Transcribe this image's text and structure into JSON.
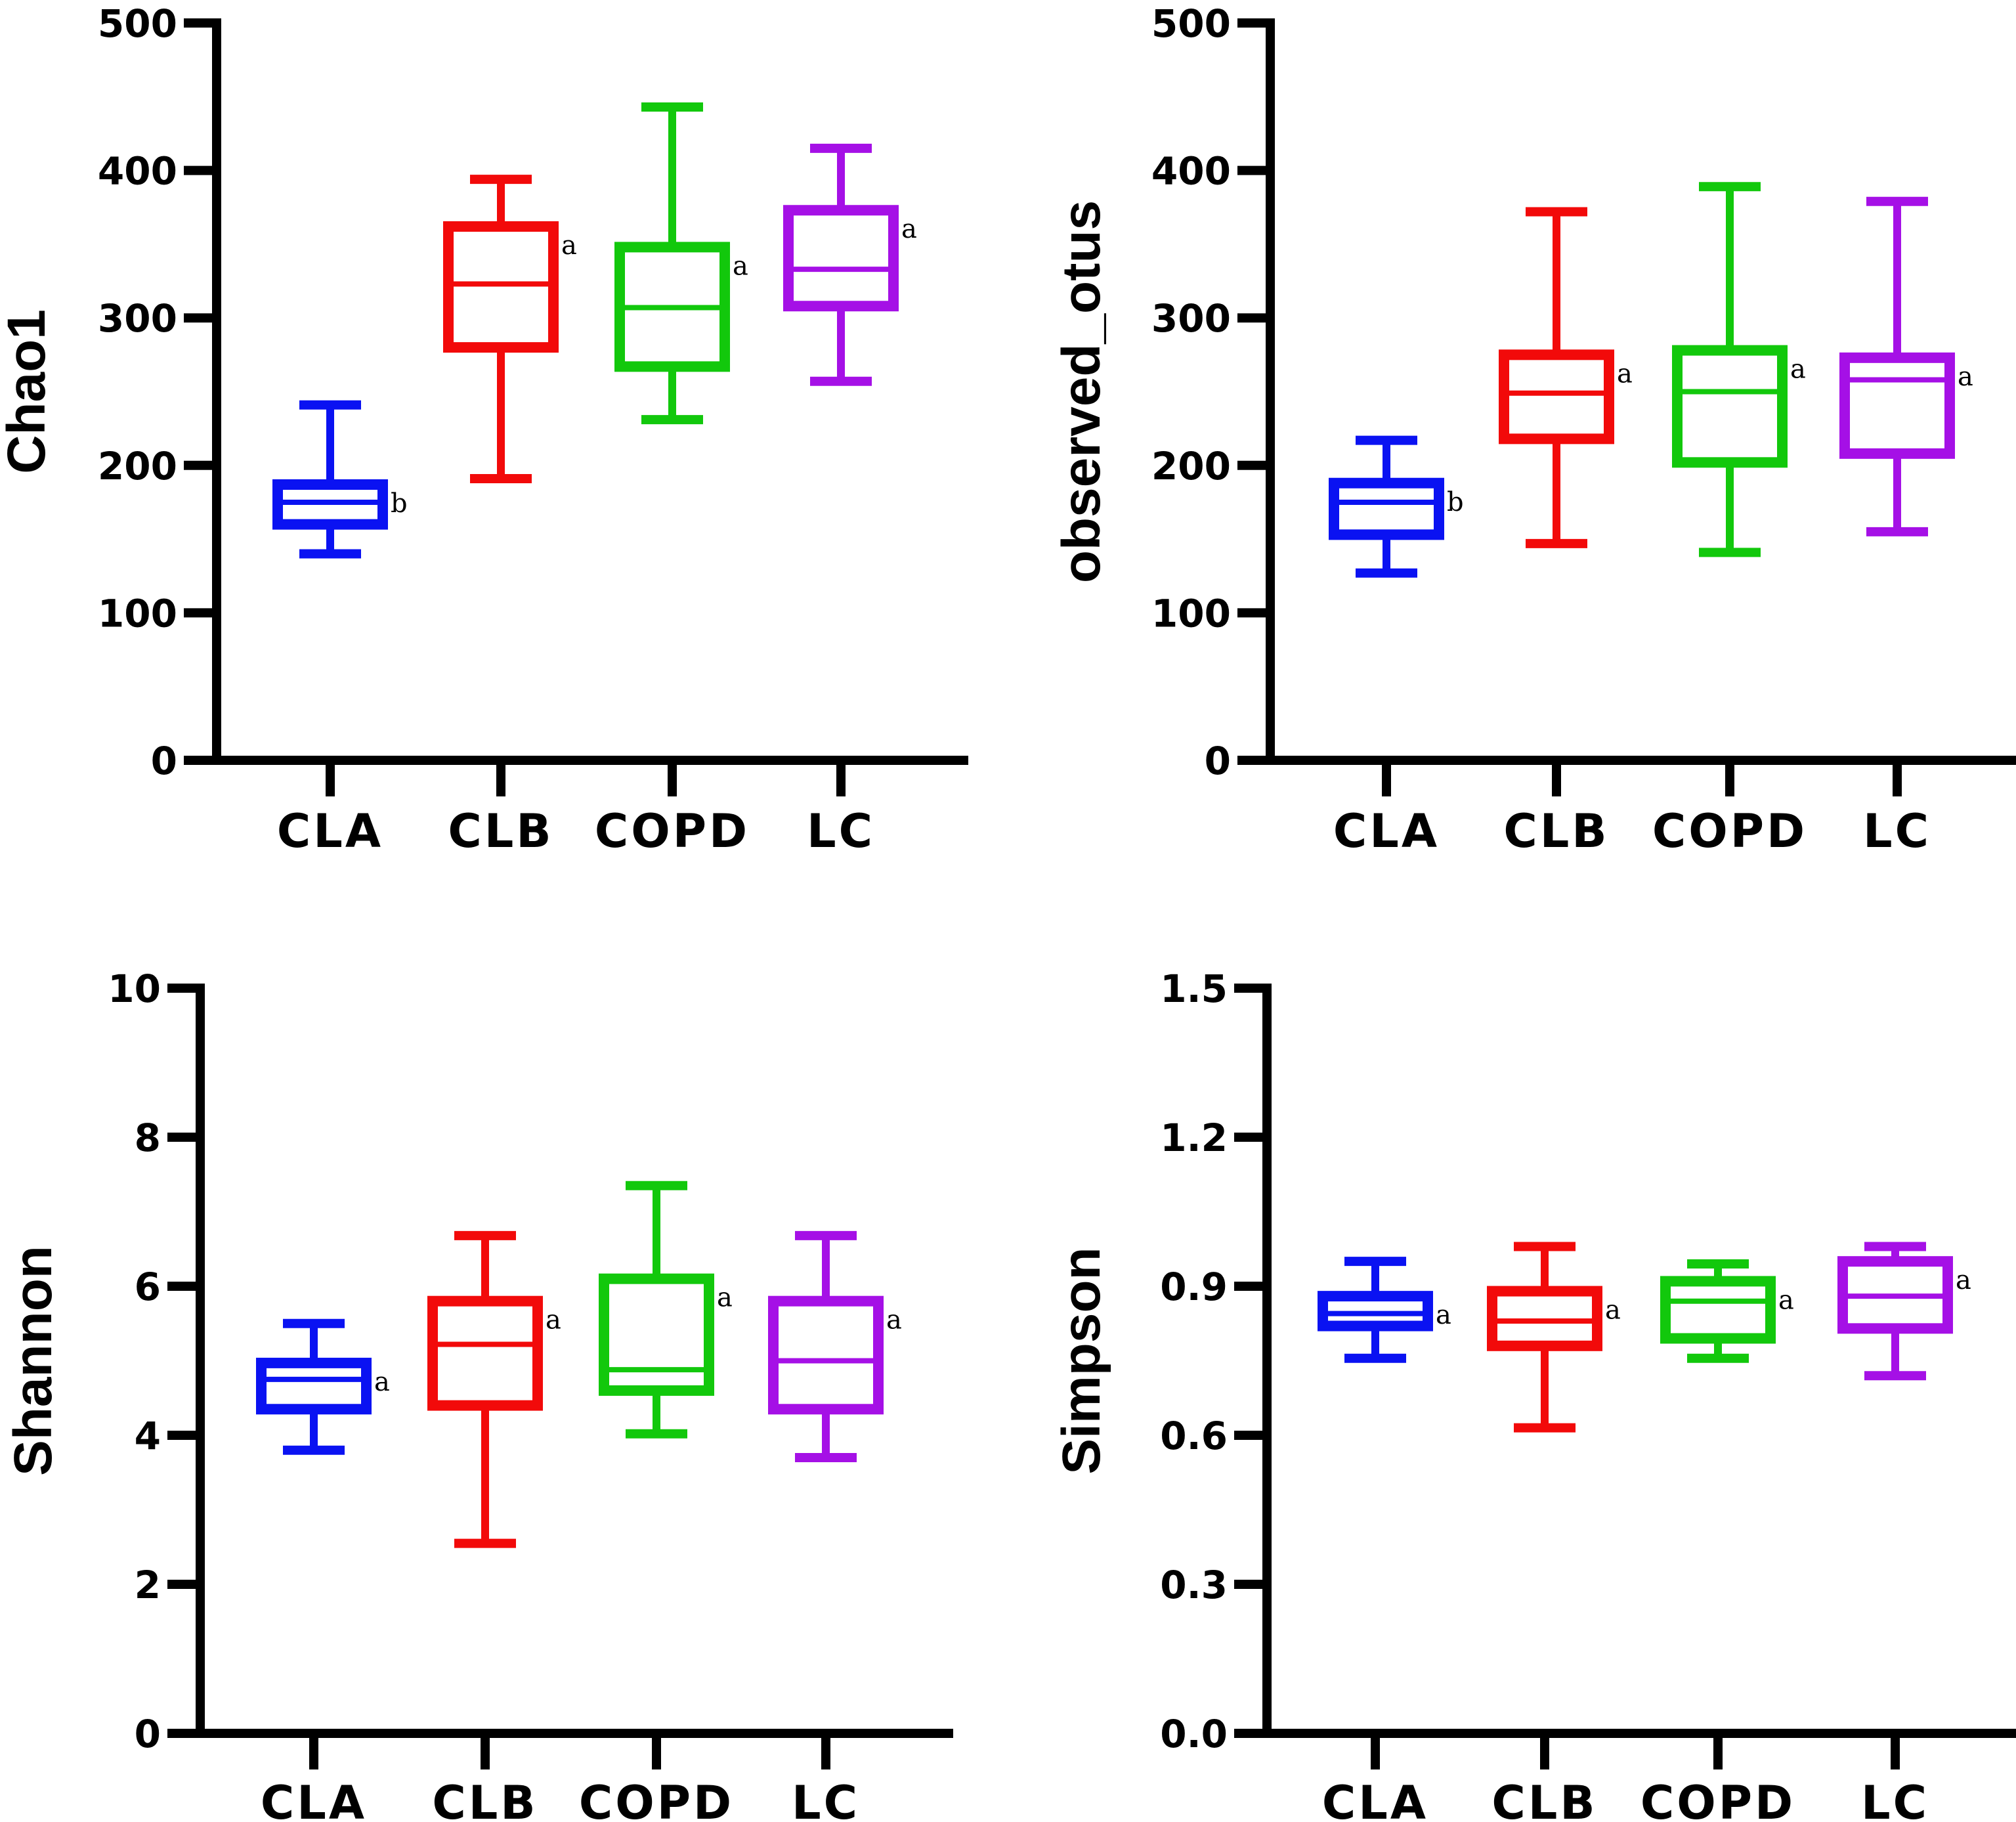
{
  "colors": {
    "CLA": "#0a12f2",
    "CLB": "#f20a0a",
    "COPD": "#12c80c",
    "LC": "#a510e6",
    "axis": "#000000"
  },
  "chart_data": [
    {
      "type": "boxplot",
      "ylabel": "Chao1",
      "ylim": [
        0,
        500
      ],
      "yticks": [
        "0",
        "100",
        "200",
        "300",
        "400",
        "500"
      ],
      "ytick_values": [
        0,
        100,
        200,
        300,
        400,
        500
      ],
      "categories": [
        "CLA",
        "CLB",
        "COPD",
        "LC"
      ],
      "boxes": [
        {
          "group": "CLA",
          "min": 140,
          "q1": 160,
          "median": 175,
          "q3": 187,
          "max": 241,
          "sig": "b"
        },
        {
          "group": "CLB",
          "min": 191,
          "q1": 280,
          "median": 323,
          "q3": 362,
          "max": 394,
          "sig": "a"
        },
        {
          "group": "COPD",
          "min": 231,
          "q1": 267,
          "median": 307,
          "q3": 348,
          "max": 443,
          "sig": "a"
        },
        {
          "group": "LC",
          "min": 257,
          "q1": 308,
          "median": 333,
          "q3": 373,
          "max": 415,
          "sig": "a"
        }
      ]
    },
    {
      "type": "boxplot",
      "ylabel": "observed_otus",
      "ylim": [
        0,
        500
      ],
      "yticks": [
        "0",
        "100",
        "200",
        "300",
        "400",
        "500"
      ],
      "ytick_values": [
        0,
        100,
        200,
        300,
        400,
        500
      ],
      "categories": [
        "CLA",
        "CLB",
        "COPD",
        "LC"
      ],
      "boxes": [
        {
          "group": "CLA",
          "min": 127,
          "q1": 153,
          "median": 175,
          "q3": 188,
          "max": 217,
          "sig": "b"
        },
        {
          "group": "CLB",
          "min": 147,
          "q1": 218,
          "median": 249,
          "q3": 275,
          "max": 372,
          "sig": "a"
        },
        {
          "group": "COPD",
          "min": 141,
          "q1": 202,
          "median": 250,
          "q3": 278,
          "max": 389,
          "sig": "a"
        },
        {
          "group": "LC",
          "min": 155,
          "q1": 208,
          "median": 258,
          "q3": 273,
          "max": 379,
          "sig": "a"
        }
      ]
    },
    {
      "type": "boxplot",
      "ylabel": "Shannon",
      "ylim": [
        0,
        10
      ],
      "yticks": [
        "0",
        "2",
        "4",
        "6",
        "8",
        "10"
      ],
      "ytick_values": [
        0,
        2,
        4,
        6,
        8,
        10
      ],
      "categories": [
        "CLA",
        "CLB",
        "COPD",
        "LC"
      ],
      "boxes": [
        {
          "group": "CLA",
          "min": 3.8,
          "q1": 4.35,
          "median": 4.75,
          "q3": 4.97,
          "max": 5.5,
          "sig": "a"
        },
        {
          "group": "CLB",
          "min": 2.55,
          "q1": 4.4,
          "median": 5.22,
          "q3": 5.8,
          "max": 6.68,
          "sig": "a"
        },
        {
          "group": "COPD",
          "min": 4.02,
          "q1": 4.6,
          "median": 4.88,
          "q3": 6.1,
          "max": 7.35,
          "sig": "a"
        },
        {
          "group": "LC",
          "min": 3.7,
          "q1": 4.35,
          "median": 5.0,
          "q3": 5.8,
          "max": 6.68,
          "sig": "a"
        }
      ]
    },
    {
      "type": "boxplot",
      "ylabel": "Simpson",
      "ylim": [
        0,
        1.5
      ],
      "yticks": [
        "0.0",
        "0.3",
        "0.6",
        "0.9",
        "1.2",
        "1.5"
      ],
      "ytick_values": [
        0,
        0.3,
        0.6,
        0.9,
        1.2,
        1.5
      ],
      "categories": [
        "CLA",
        "CLB",
        "COPD",
        "LC"
      ],
      "boxes": [
        {
          "group": "CLA",
          "min": 0.755,
          "q1": 0.82,
          "median": 0.845,
          "q3": 0.88,
          "max": 0.95,
          "sig": "a"
        },
        {
          "group": "CLB",
          "min": 0.615,
          "q1": 0.78,
          "median": 0.83,
          "q3": 0.89,
          "max": 0.98,
          "sig": "a"
        },
        {
          "group": "COPD",
          "min": 0.755,
          "q1": 0.795,
          "median": 0.87,
          "q3": 0.91,
          "max": 0.945,
          "sig": "a"
        },
        {
          "group": "LC",
          "min": 0.72,
          "q1": 0.815,
          "median": 0.88,
          "q3": 0.95,
          "max": 0.98,
          "sig": "a"
        }
      ]
    }
  ]
}
